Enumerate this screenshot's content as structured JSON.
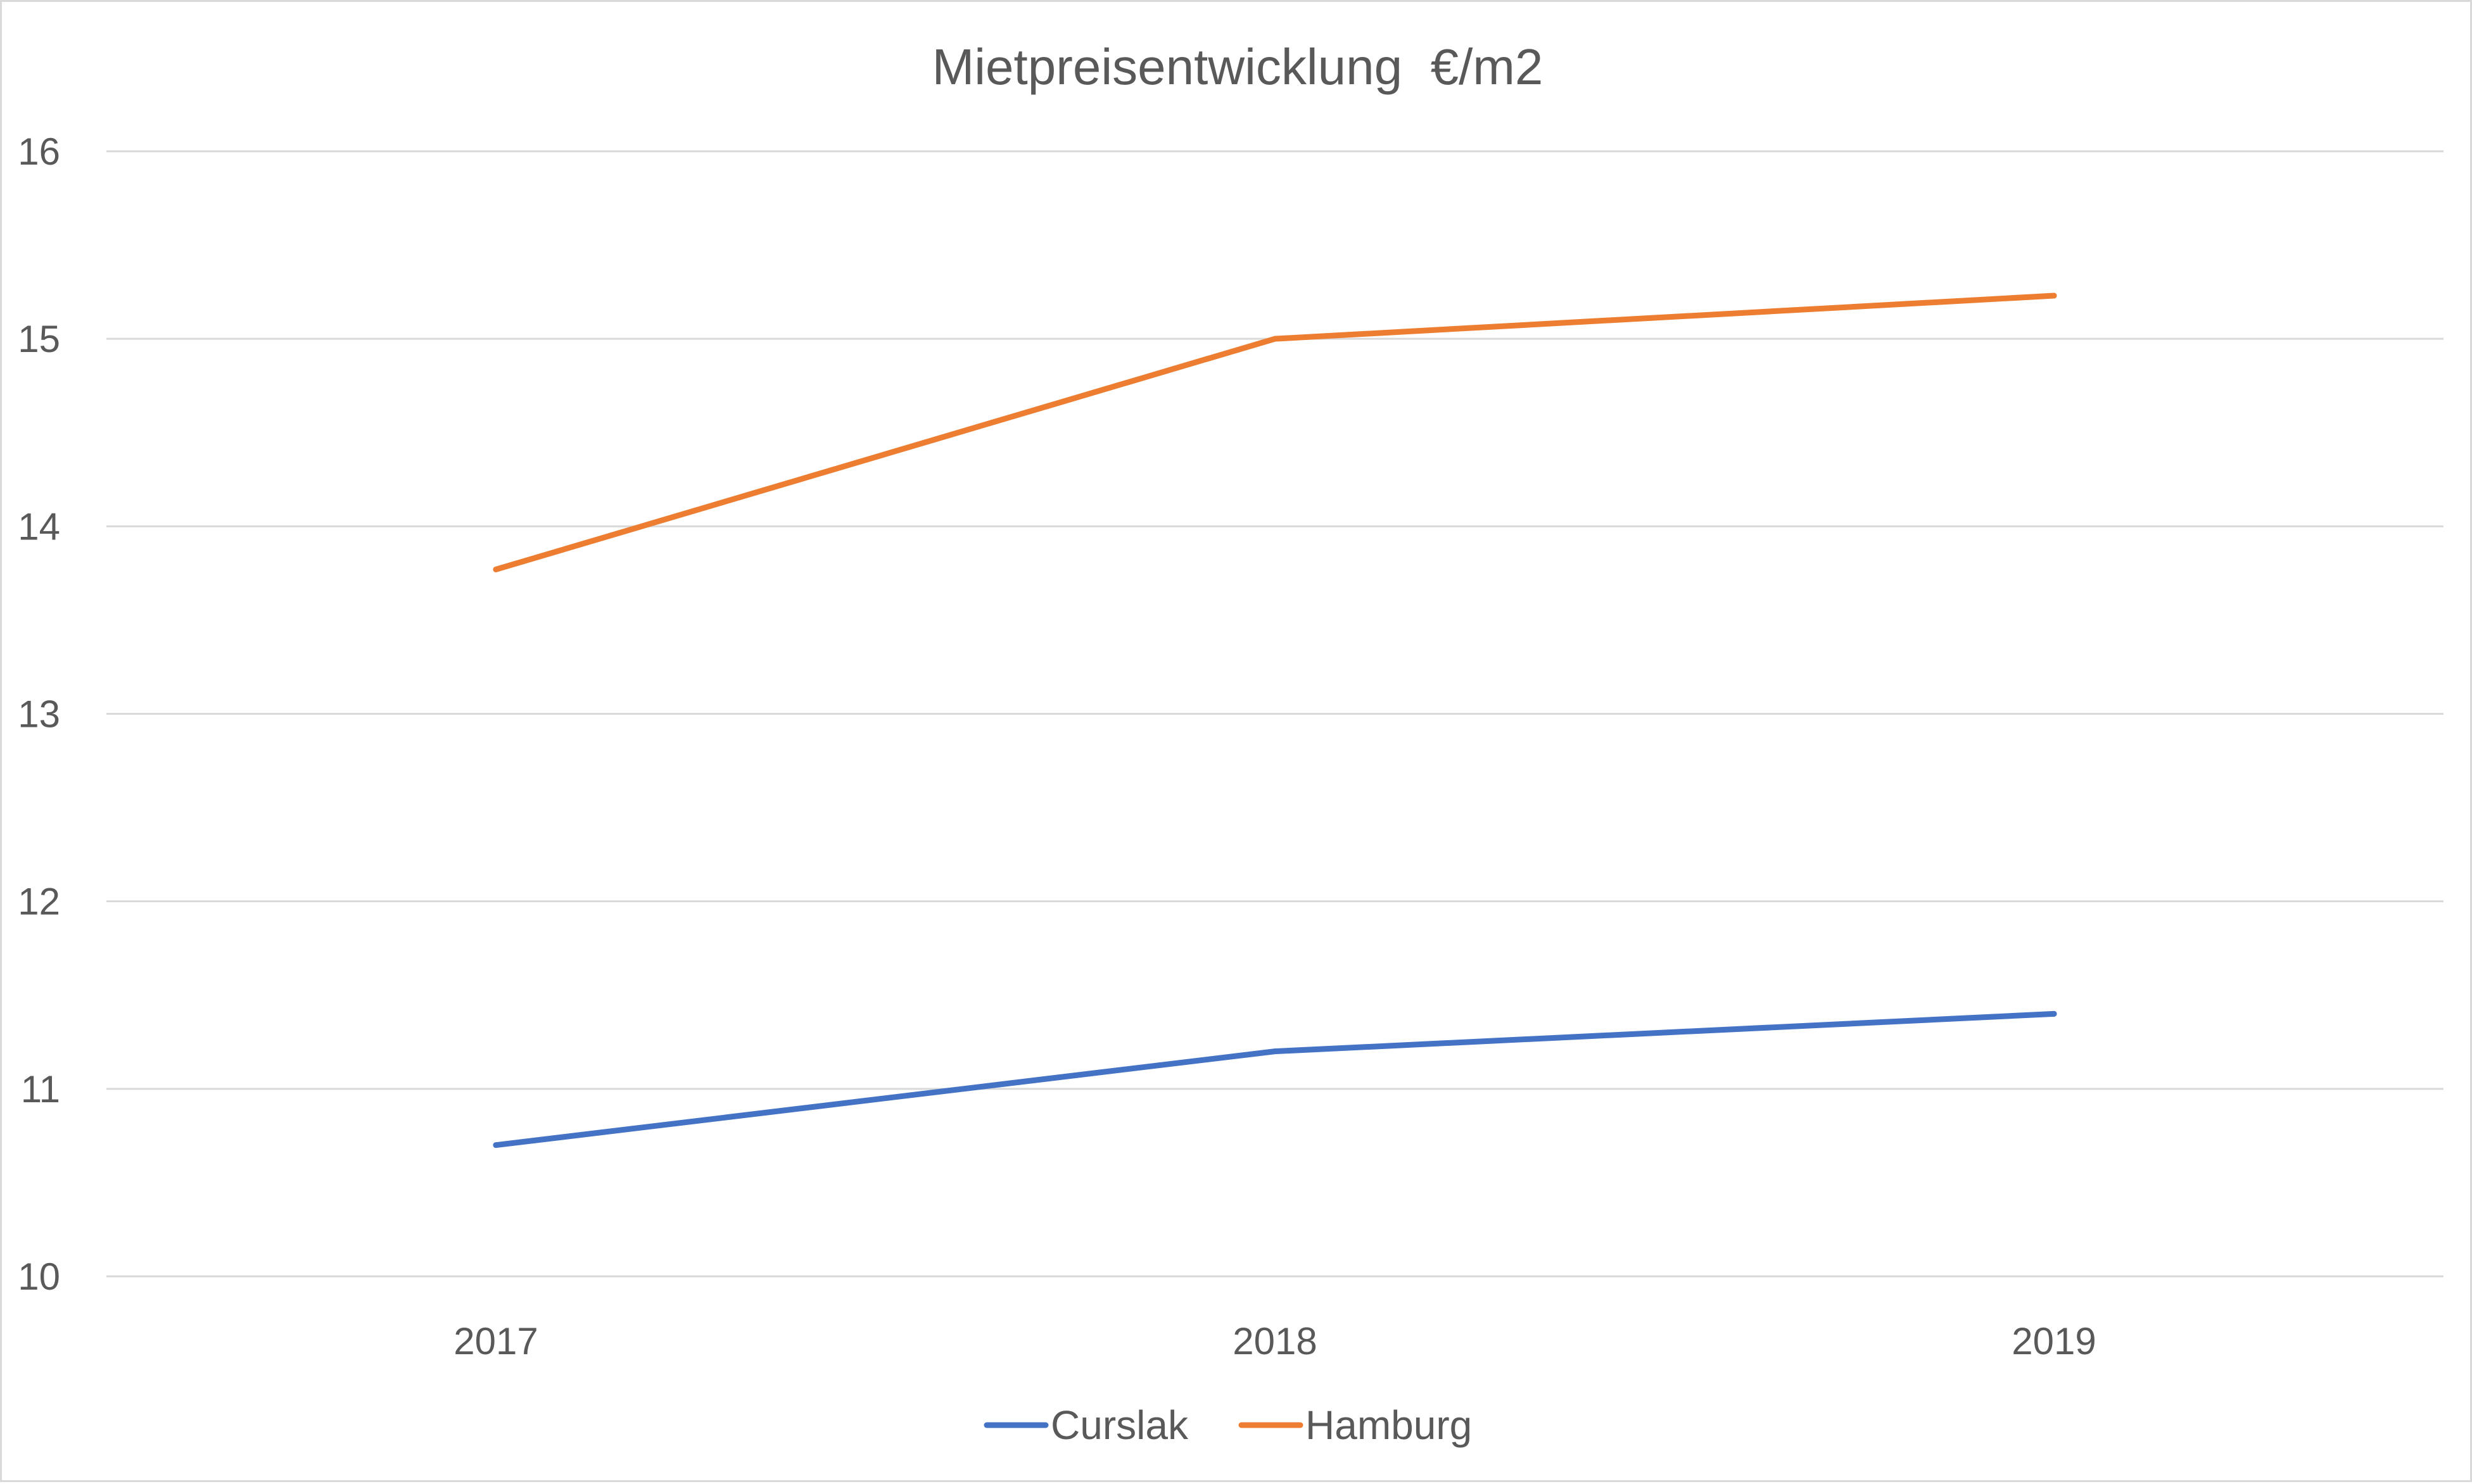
{
  "chart_data": {
    "type": "line",
    "title": "Mietpreisentwicklung  €/m2",
    "xlabel": "",
    "ylabel": "",
    "categories": [
      "2017",
      "2018",
      "2019"
    ],
    "ylim": [
      10,
      16
    ],
    "yticks": [
      "10",
      "11",
      "12",
      "13",
      "14",
      "15",
      "16"
    ],
    "grid": true,
    "legend_position": "bottom",
    "series": [
      {
        "name": "Curslak",
        "color": "#4472c4",
        "values": [
          10.7,
          11.2,
          11.4
        ]
      },
      {
        "name": "Hamburg",
        "color": "#ed7d31",
        "values": [
          13.77,
          15.0,
          15.23
        ]
      }
    ]
  }
}
